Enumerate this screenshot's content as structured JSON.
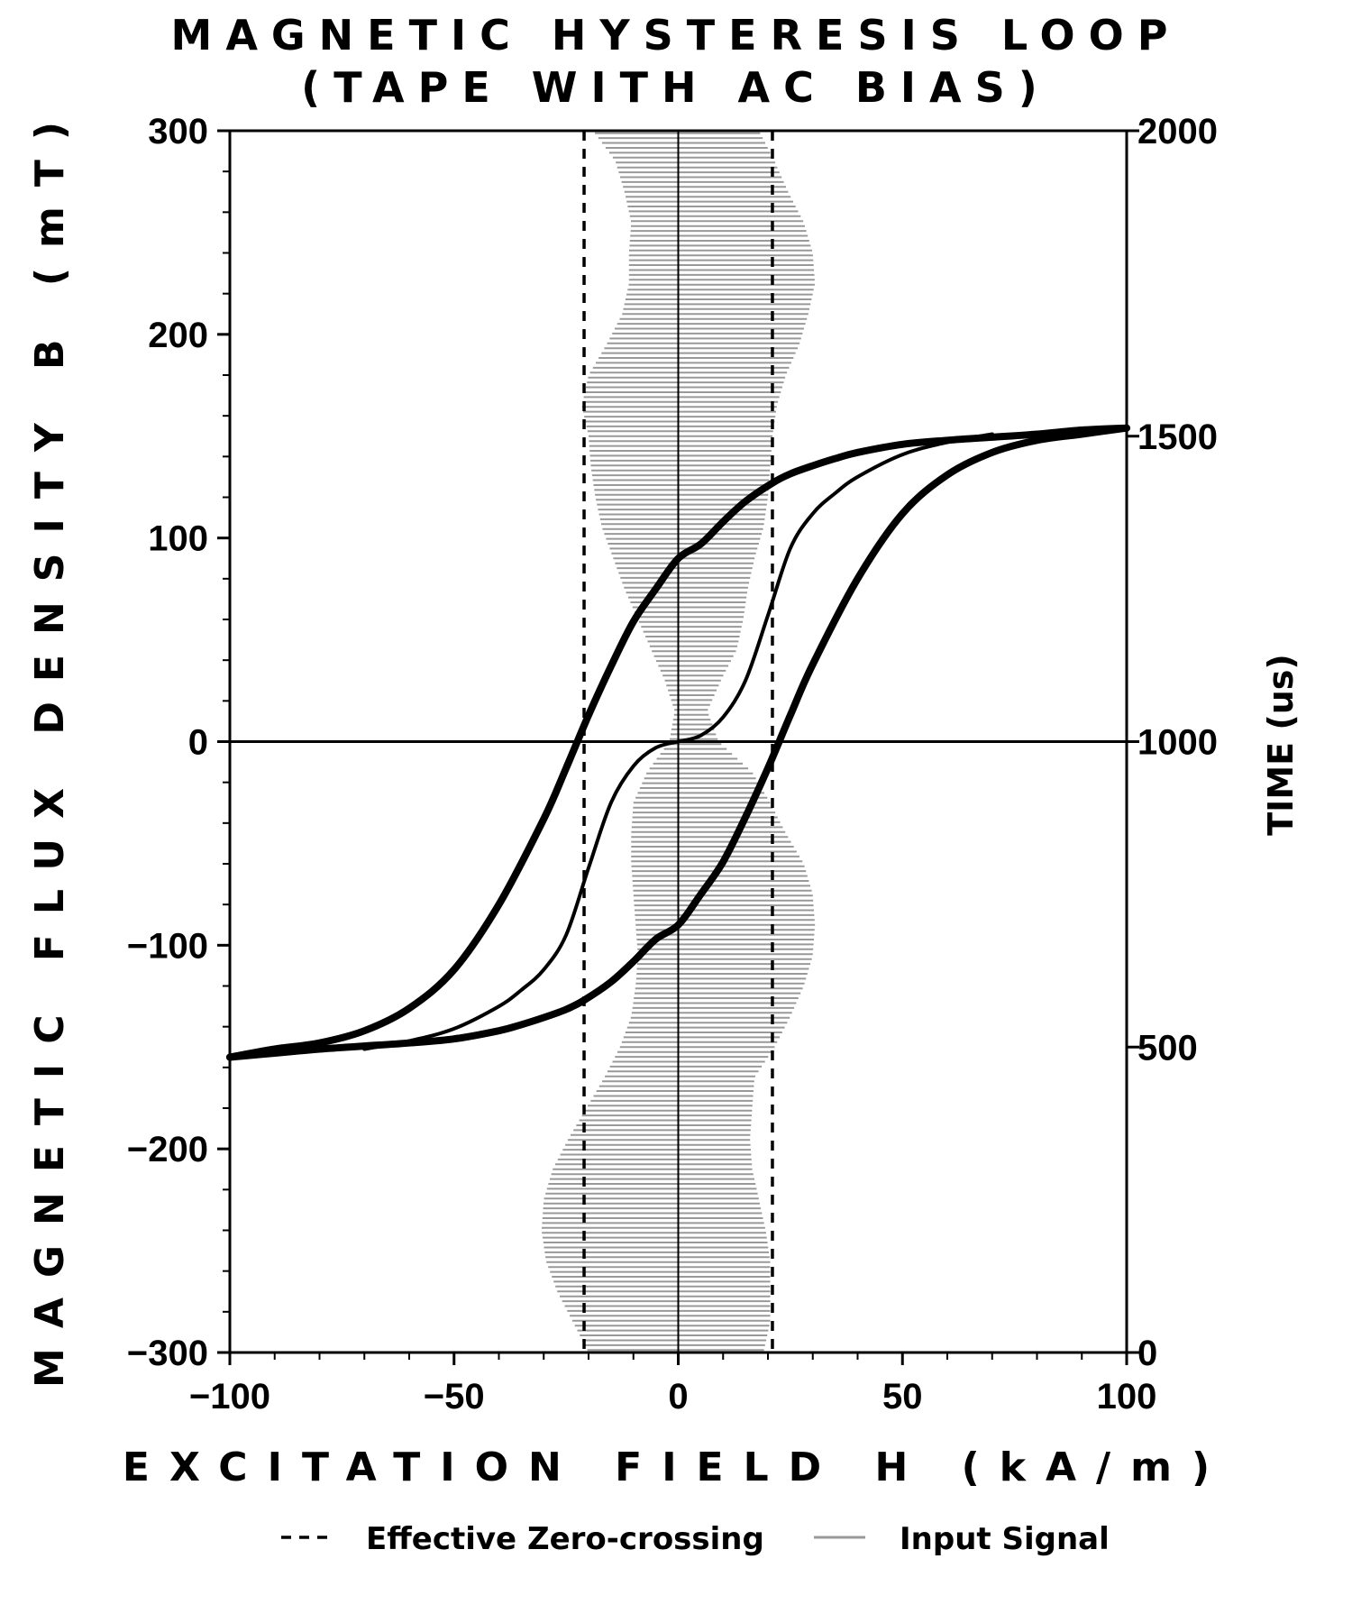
{
  "chart_data": {
    "type": "line",
    "title_lines": [
      "MAGNETIC HYSTERESIS LOOP",
      "(TAPE WITH AC BIAS)"
    ],
    "xlabel": "EXCITATION FIELD H (kA/m)",
    "ylabel": "MAGNETIC FLUX DENSITY B (mT)",
    "y2label": "TIME (us)",
    "xlim": [
      -100,
      100
    ],
    "ylim": [
      -300,
      300
    ],
    "y2lim": [
      0,
      2000
    ],
    "x_ticks": [
      -100,
      -50,
      0,
      50,
      100
    ],
    "y_ticks": [
      -300,
      -200,
      -100,
      0,
      100,
      200,
      300
    ],
    "y2_ticks": [
      0,
      500,
      1000,
      1500,
      2000
    ],
    "x_tick_labels": [
      "−100",
      "−50",
      "0",
      "50",
      "100"
    ],
    "y_tick_labels": [
      "−300",
      "−200",
      "−100",
      "0",
      "100",
      "200",
      "300"
    ],
    "y2_tick_labels": [
      "0",
      "500",
      "1000",
      "1500",
      "2000"
    ],
    "zero_crossing_h": [
      -21,
      21
    ],
    "series": [
      {
        "name": "Effective Zero-crossing",
        "style": "dashed",
        "color": "#000000",
        "x": [
          -21,
          -21,
          21,
          21
        ],
        "y": [
          -300,
          300,
          -300,
          300
        ]
      },
      {
        "name": "Input Signal",
        "style": "hatch",
        "color": "#999999",
        "axis": "y2",
        "bias_amplitude": 20,
        "time_range": [
          0,
          2000
        ],
        "time_step": 8,
        "envelope_time": [
          0,
          50,
          100,
          150,
          200,
          250,
          300,
          350,
          400,
          450,
          500,
          550,
          600,
          650,
          700,
          750,
          800,
          850,
          900,
          950,
          1000,
          1050,
          1100,
          1150,
          1200,
          1250,
          1300,
          1350,
          1400,
          1450,
          1500,
          1550,
          1600,
          1650,
          1700,
          1750,
          1800,
          1850,
          1900,
          1950,
          2000
        ],
        "envelope_min": [
          -20,
          -23.5,
          -27,
          -29.5,
          -30.5,
          -30,
          -28,
          -24.5,
          -20.5,
          -16.5,
          -13,
          -10.5,
          -9.5,
          -9,
          -9.5,
          -10,
          -10.5,
          -10.5,
          -10,
          -7,
          -2,
          -0.8,
          -3,
          -6,
          -9,
          -12,
          -14.5,
          -17,
          -18.5,
          -19.5,
          -20,
          -21.5,
          -20,
          -16,
          -12.5,
          -11,
          -11,
          -10.5,
          -12,
          -14,
          -19
        ],
        "envelope_max": [
          19,
          20.5,
          20.5,
          20.5,
          19.5,
          18,
          16.5,
          16,
          16.5,
          17,
          21.5,
          25,
          28,
          30,
          30.5,
          30,
          28,
          24,
          20.5,
          16.5,
          9,
          6.5,
          9.5,
          13,
          14.5,
          15.5,
          17,
          19,
          20,
          20.5,
          21,
          22,
          24,
          27,
          29,
          30.5,
          30,
          28,
          24.5,
          21.5,
          18
        ]
      },
      {
        "name": "major-loop-ascending",
        "style": "thick",
        "color": "#000000",
        "x": [
          -100,
          -90,
          -80,
          -70,
          -60,
          -50,
          -40,
          -35,
          -30,
          -25,
          -21,
          -15,
          -10,
          -5,
          0,
          5,
          10,
          15,
          20,
          25,
          30,
          40,
          50,
          60,
          70,
          80,
          90,
          100
        ],
        "y": [
          -155,
          -153,
          -151,
          -149.5,
          -148,
          -146,
          -142,
          -139,
          -135.5,
          -131.5,
          -127,
          -118,
          -108,
          -97,
          -90,
          -75,
          -59,
          -37,
          -13,
          13,
          38,
          80,
          112,
          131,
          142,
          148,
          151,
          154
        ]
      },
      {
        "name": "major-loop-descending",
        "style": "thick",
        "color": "#000000",
        "x": [
          100,
          90,
          80,
          70,
          60,
          50,
          40,
          35,
          30,
          25,
          21,
          15,
          10,
          5,
          0,
          -5,
          -10,
          -15,
          -20,
          -25,
          -30,
          -40,
          -50,
          -60,
          -70,
          -80,
          -90,
          -100
        ],
        "y": [
          154,
          153,
          151,
          149.5,
          148,
          146,
          142,
          139,
          135.5,
          131.5,
          127,
          118,
          108,
          97,
          90,
          75,
          59,
          37,
          13,
          -13,
          -38,
          -80,
          -112,
          -131,
          -142,
          -148,
          -151,
          -155
        ]
      },
      {
        "name": "initial-magnetization-positive",
        "style": "thin",
        "color": "#000000",
        "x": [
          0,
          5,
          10,
          15,
          20,
          25,
          30,
          35,
          40,
          50,
          60,
          70
        ],
        "y": [
          0,
          3,
          12,
          30,
          62,
          95,
          112,
          122,
          130,
          141,
          147,
          151
        ]
      },
      {
        "name": "initial-magnetization-negative",
        "style": "thin",
        "color": "#000000",
        "x": [
          0,
          -5,
          -10,
          -15,
          -20,
          -25,
          -30,
          -35,
          -40,
          -50,
          -60,
          -70
        ],
        "y": [
          0,
          -3,
          -12,
          -30,
          -62,
          -95,
          -112,
          -122,
          -130,
          -141,
          -147,
          -151
        ]
      }
    ],
    "legend_position": "bottom",
    "legend": [
      {
        "label": "Effective Zero-crossing",
        "style": "dashed",
        "color": "#000000"
      },
      {
        "label": "Input Signal",
        "style": "solid",
        "color": "#999999"
      }
    ],
    "grid": false,
    "zero_axes": true
  }
}
